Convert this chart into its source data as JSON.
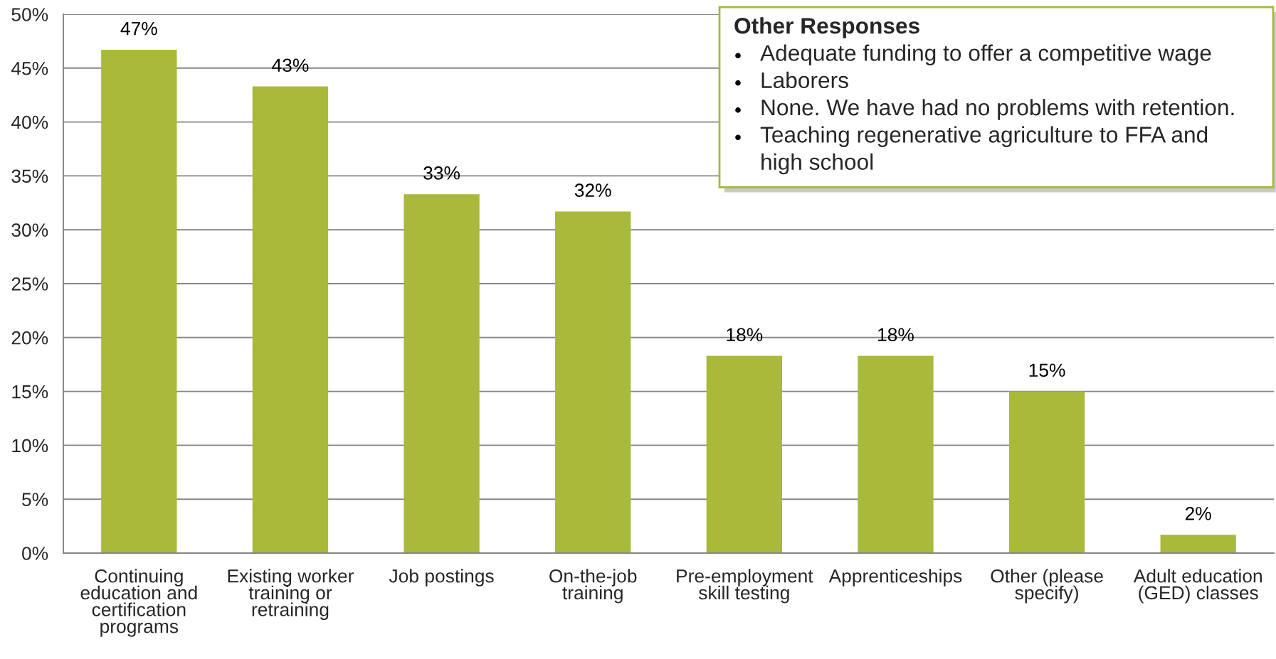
{
  "chart_data": {
    "type": "bar",
    "categories": [
      "Continuing education and certification programs",
      "Existing worker training or retraining",
      "Job postings",
      "On-the-job training",
      "Pre-employment skill testing",
      "Apprenticeships",
      "Other (please specify)",
      "Adult education (GED) classes"
    ],
    "values": [
      46.7,
      43.3,
      33.3,
      31.7,
      18.3,
      18.3,
      15.0,
      1.7
    ],
    "value_labels": [
      "47%",
      "43%",
      "33%",
      "32%",
      "18%",
      "18%",
      "15%",
      "2%"
    ],
    "color": "#a9b93a",
    "ylim": [
      0,
      50
    ],
    "yticks": [
      {
        "value": 0,
        "label": "0%"
      },
      {
        "value": 5,
        "label": "5%"
      },
      {
        "value": 10,
        "label": "10%"
      },
      {
        "value": 15,
        "label": "15%"
      },
      {
        "value": 20,
        "label": "20%"
      },
      {
        "value": 25,
        "label": "25%"
      },
      {
        "value": 30,
        "label": "30%"
      },
      {
        "value": 35,
        "label": "35%"
      },
      {
        "value": 40,
        "label": "40%"
      },
      {
        "value": 45,
        "label": "45%"
      },
      {
        "value": 50,
        "label": "50%"
      }
    ],
    "grid": "y",
    "annotations": [
      "Other Responses",
      "Adequate funding to offer a competitive wage",
      "Laborers",
      "None. We have had no problems with retention.",
      "Teaching regenerative agriculture to FFA and high school"
    ]
  }
}
